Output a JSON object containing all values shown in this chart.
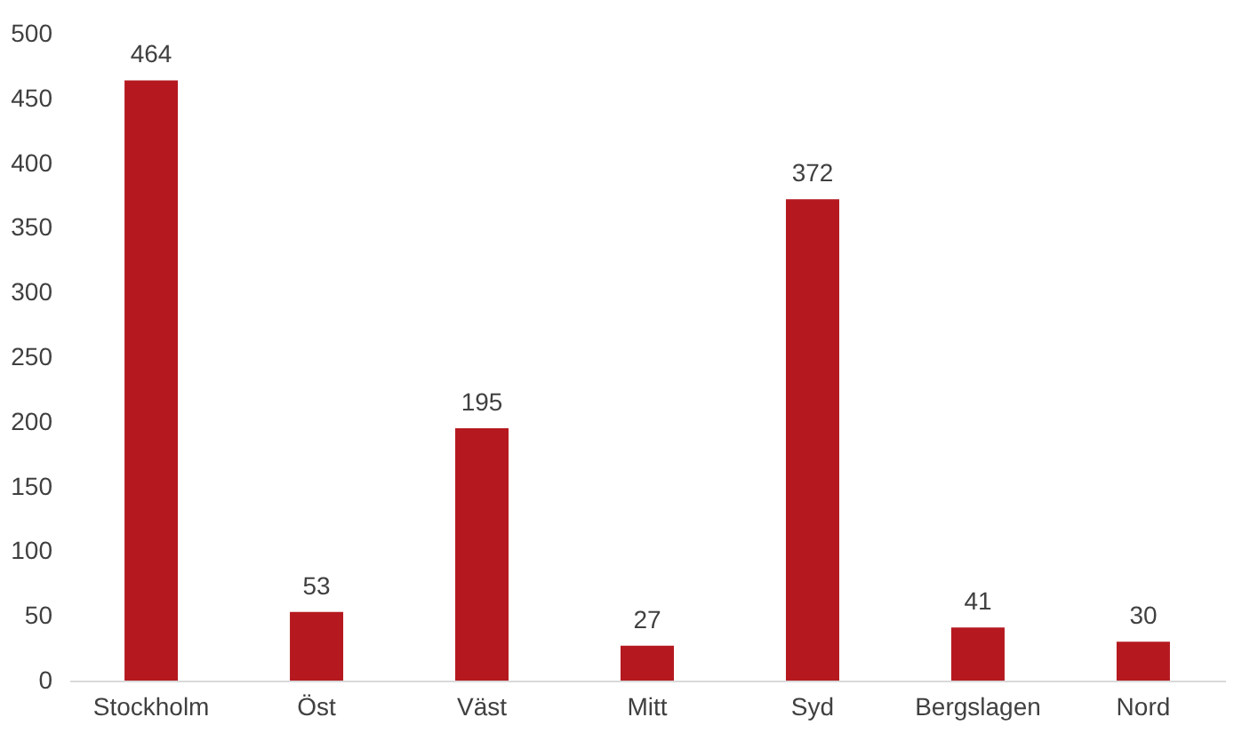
{
  "chart_data": {
    "type": "bar",
    "categories": [
      "Stockholm",
      "Öst",
      "Väst",
      "Mitt",
      "Syd",
      "Bergslagen",
      "Nord"
    ],
    "values": [
      464,
      53,
      195,
      27,
      372,
      41,
      30
    ],
    "color": "#b5191f",
    "ylim": [
      0,
      500
    ],
    "yticks": [
      0,
      50,
      100,
      150,
      200,
      250,
      300,
      350,
      400,
      450,
      500
    ],
    "data_labels": true,
    "grid": false
  }
}
